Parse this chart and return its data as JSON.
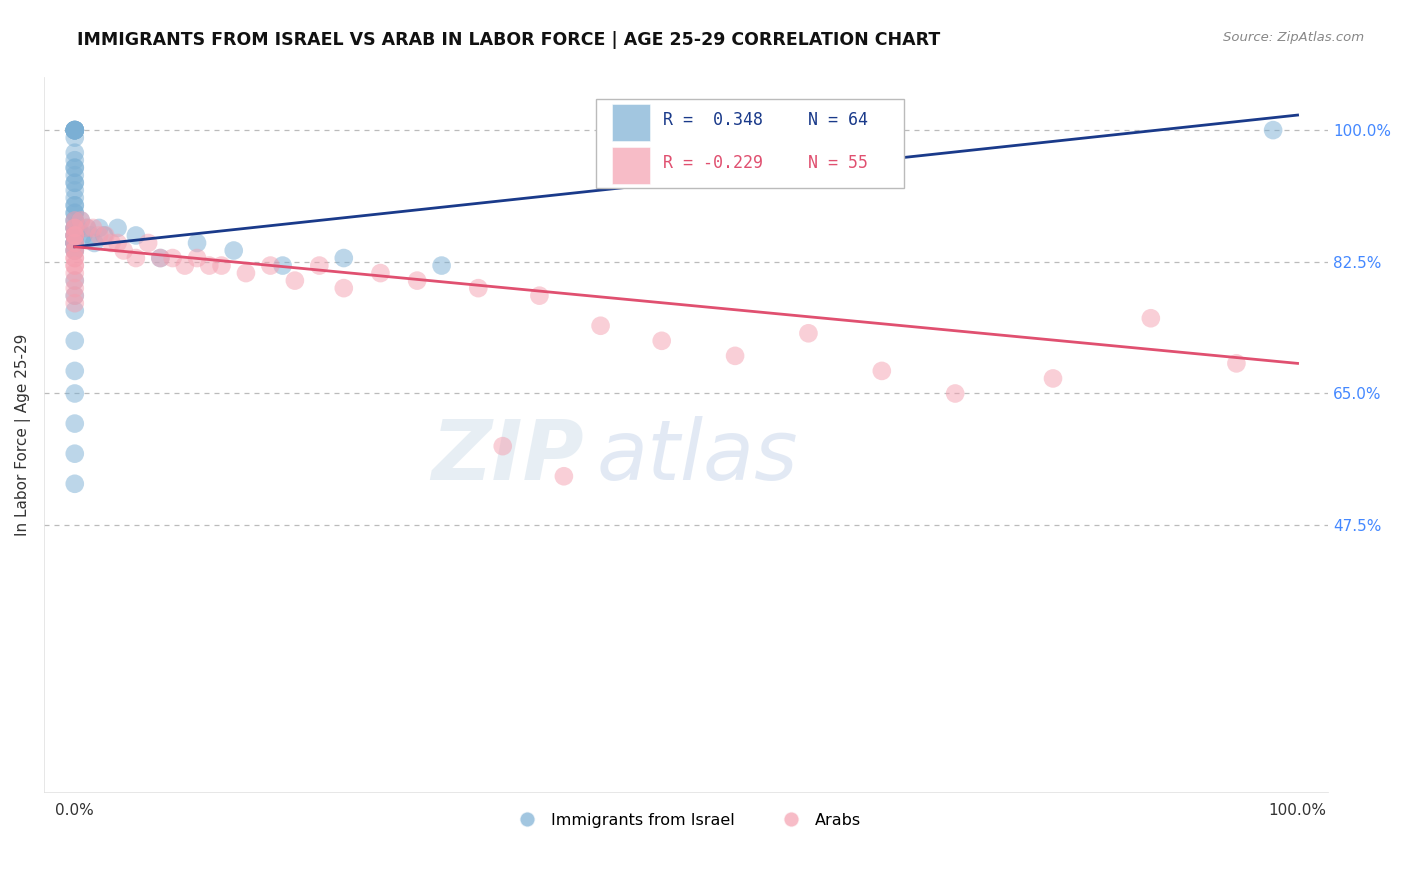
{
  "title": "IMMIGRANTS FROM ISRAEL VS ARAB IN LABOR FORCE | AGE 25-29 CORRELATION CHART",
  "source_text": "Source: ZipAtlas.com",
  "ylabel": "In Labor Force | Age 25-29",
  "watermark_zip": "ZIP",
  "watermark_atlas": "atlas",
  "legend_r_israel": "R =  0.348",
  "legend_n_israel": "N = 64",
  "legend_r_arab": "R = -0.229",
  "legend_n_arab": "N = 55",
  "israel_color": "#7BAFD4",
  "arab_color": "#F4A0B0",
  "trendline_israel_color": "#1A3A8A",
  "trendline_arab_color": "#E05070",
  "background_color": "#FFFFFF",
  "title_fontsize": 12.5,
  "right_tick_color": "#4488FF",
  "ytick_labels": [
    "47.5%",
    "65.0%",
    "82.5%",
    "100.0%"
  ],
  "ytick_values": [
    0.475,
    0.65,
    0.825,
    1.0
  ],
  "xlim": [
    -0.025,
    1.025
  ],
  "ylim": [
    0.12,
    1.07
  ],
  "israel_trend_x": [
    0.0,
    1.0
  ],
  "israel_trend_y": [
    0.845,
    1.02
  ],
  "arab_trend_x": [
    0.0,
    1.0
  ],
  "arab_trend_y": [
    0.845,
    0.69
  ],
  "israel_x": [
    0.0,
    0.0,
    0.0,
    0.0,
    0.0,
    0.0,
    0.0,
    0.0,
    0.0,
    0.0,
    0.0,
    0.0,
    0.0,
    0.0,
    0.0,
    0.0,
    0.0,
    0.0,
    0.0,
    0.0,
    0.0,
    0.0,
    0.0,
    0.0,
    0.0,
    0.0,
    0.0,
    0.0,
    0.0,
    0.0,
    0.0,
    0.0,
    0.0,
    0.0,
    0.0,
    0.0,
    0.0,
    0.0,
    0.0,
    0.0,
    0.0,
    0.0,
    0.0,
    0.0,
    0.0,
    0.0,
    0.0,
    0.003,
    0.005,
    0.007,
    0.01,
    0.013,
    0.016,
    0.02,
    0.024,
    0.035,
    0.05,
    0.07,
    0.1,
    0.13,
    0.17,
    0.22,
    0.3,
    0.98
  ],
  "israel_y": [
    1.0,
    1.0,
    1.0,
    1.0,
    1.0,
    1.0,
    1.0,
    1.0,
    1.0,
    0.99,
    0.97,
    0.96,
    0.95,
    0.95,
    0.94,
    0.93,
    0.93,
    0.92,
    0.91,
    0.9,
    0.9,
    0.89,
    0.89,
    0.88,
    0.88,
    0.87,
    0.87,
    0.87,
    0.86,
    0.86,
    0.86,
    0.85,
    0.85,
    0.85,
    0.85,
    0.85,
    0.84,
    0.84,
    0.8,
    0.78,
    0.76,
    0.72,
    0.68,
    0.65,
    0.61,
    0.57,
    0.53,
    0.87,
    0.88,
    0.86,
    0.87,
    0.86,
    0.85,
    0.87,
    0.86,
    0.87,
    0.86,
    0.83,
    0.85,
    0.84,
    0.82,
    0.83,
    0.82,
    1.0
  ],
  "arab_x": [
    0.0,
    0.0,
    0.0,
    0.0,
    0.0,
    0.0,
    0.0,
    0.0,
    0.0,
    0.0,
    0.0,
    0.0,
    0.0,
    0.0,
    0.0,
    0.0,
    0.0,
    0.0,
    0.0,
    0.005,
    0.01,
    0.015,
    0.02,
    0.025,
    0.03,
    0.035,
    0.04,
    0.05,
    0.06,
    0.07,
    0.08,
    0.09,
    0.1,
    0.11,
    0.12,
    0.14,
    0.16,
    0.18,
    0.2,
    0.22,
    0.25,
    0.28,
    0.33,
    0.38,
    0.43,
    0.48,
    0.54,
    0.6,
    0.66,
    0.72,
    0.8,
    0.88,
    0.95,
    0.35,
    0.4
  ],
  "arab_y": [
    0.88,
    0.87,
    0.87,
    0.86,
    0.86,
    0.86,
    0.85,
    0.85,
    0.84,
    0.84,
    0.83,
    0.83,
    0.82,
    0.82,
    0.81,
    0.8,
    0.79,
    0.78,
    0.77,
    0.88,
    0.87,
    0.87,
    0.86,
    0.86,
    0.85,
    0.85,
    0.84,
    0.83,
    0.85,
    0.83,
    0.83,
    0.82,
    0.83,
    0.82,
    0.82,
    0.81,
    0.82,
    0.8,
    0.82,
    0.79,
    0.81,
    0.8,
    0.79,
    0.78,
    0.74,
    0.72,
    0.7,
    0.73,
    0.68,
    0.65,
    0.67,
    0.75,
    0.69,
    0.58,
    0.54
  ]
}
